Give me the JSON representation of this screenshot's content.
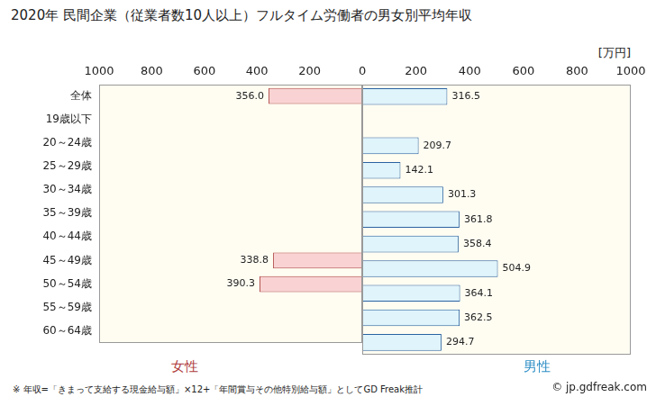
{
  "title": "2020年 民間企業（従業者数10人以上）フルタイム労働者の男女別平均年収",
  "unit": "[万円]",
  "note": "※ 年収=「きまって支給する現金給与額」×12+「年間賞与その他特別給与額」としてGD Freak推計",
  "credit": "© jp.gdfreak.com",
  "chart_data": [
    {
      "type": "bar",
      "orientation": "horizontal",
      "categories": [
        "全体",
        "19歳以下",
        "20～24歳",
        "25～29歳",
        "30～34歳",
        "35～39歳",
        "40～44歳",
        "45～49歳",
        "50～54歳",
        "55～59歳",
        "60～64歳"
      ],
      "series": [
        {
          "name": "女性",
          "color": "#f9d3d3",
          "values": [
            356.0,
            null,
            null,
            null,
            null,
            null,
            null,
            338.8,
            390.3,
            null,
            null
          ],
          "value_labels": [
            "356.0",
            null,
            null,
            null,
            null,
            null,
            null,
            "338.8",
            "390.3",
            null,
            null
          ]
        }
      ],
      "xlim": [
        1000,
        0
      ],
      "xticks": [
        200,
        400,
        600,
        800,
        1000
      ],
      "grid": false,
      "data_labels": true
    },
    {
      "type": "bar",
      "orientation": "horizontal",
      "categories": [
        "全体",
        "19歳以下",
        "20～24歳",
        "25～29歳",
        "30～34歳",
        "35～39歳",
        "40～44歳",
        "45～49歳",
        "50～54歳",
        "55～59歳",
        "60～64歳"
      ],
      "series": [
        {
          "name": "男性",
          "color": "#dff4fb",
          "values": [
            316.5,
            null,
            209.7,
            142.1,
            301.3,
            361.8,
            358.4,
            504.9,
            364.1,
            362.5,
            294.7
          ]
        }
      ],
      "xlim": [
        0,
        1000
      ],
      "xticks": [
        0,
        200,
        400,
        600,
        800,
        1000
      ],
      "grid": false,
      "data_labels": true,
      "tick_labels": "x"
    }
  ]
}
